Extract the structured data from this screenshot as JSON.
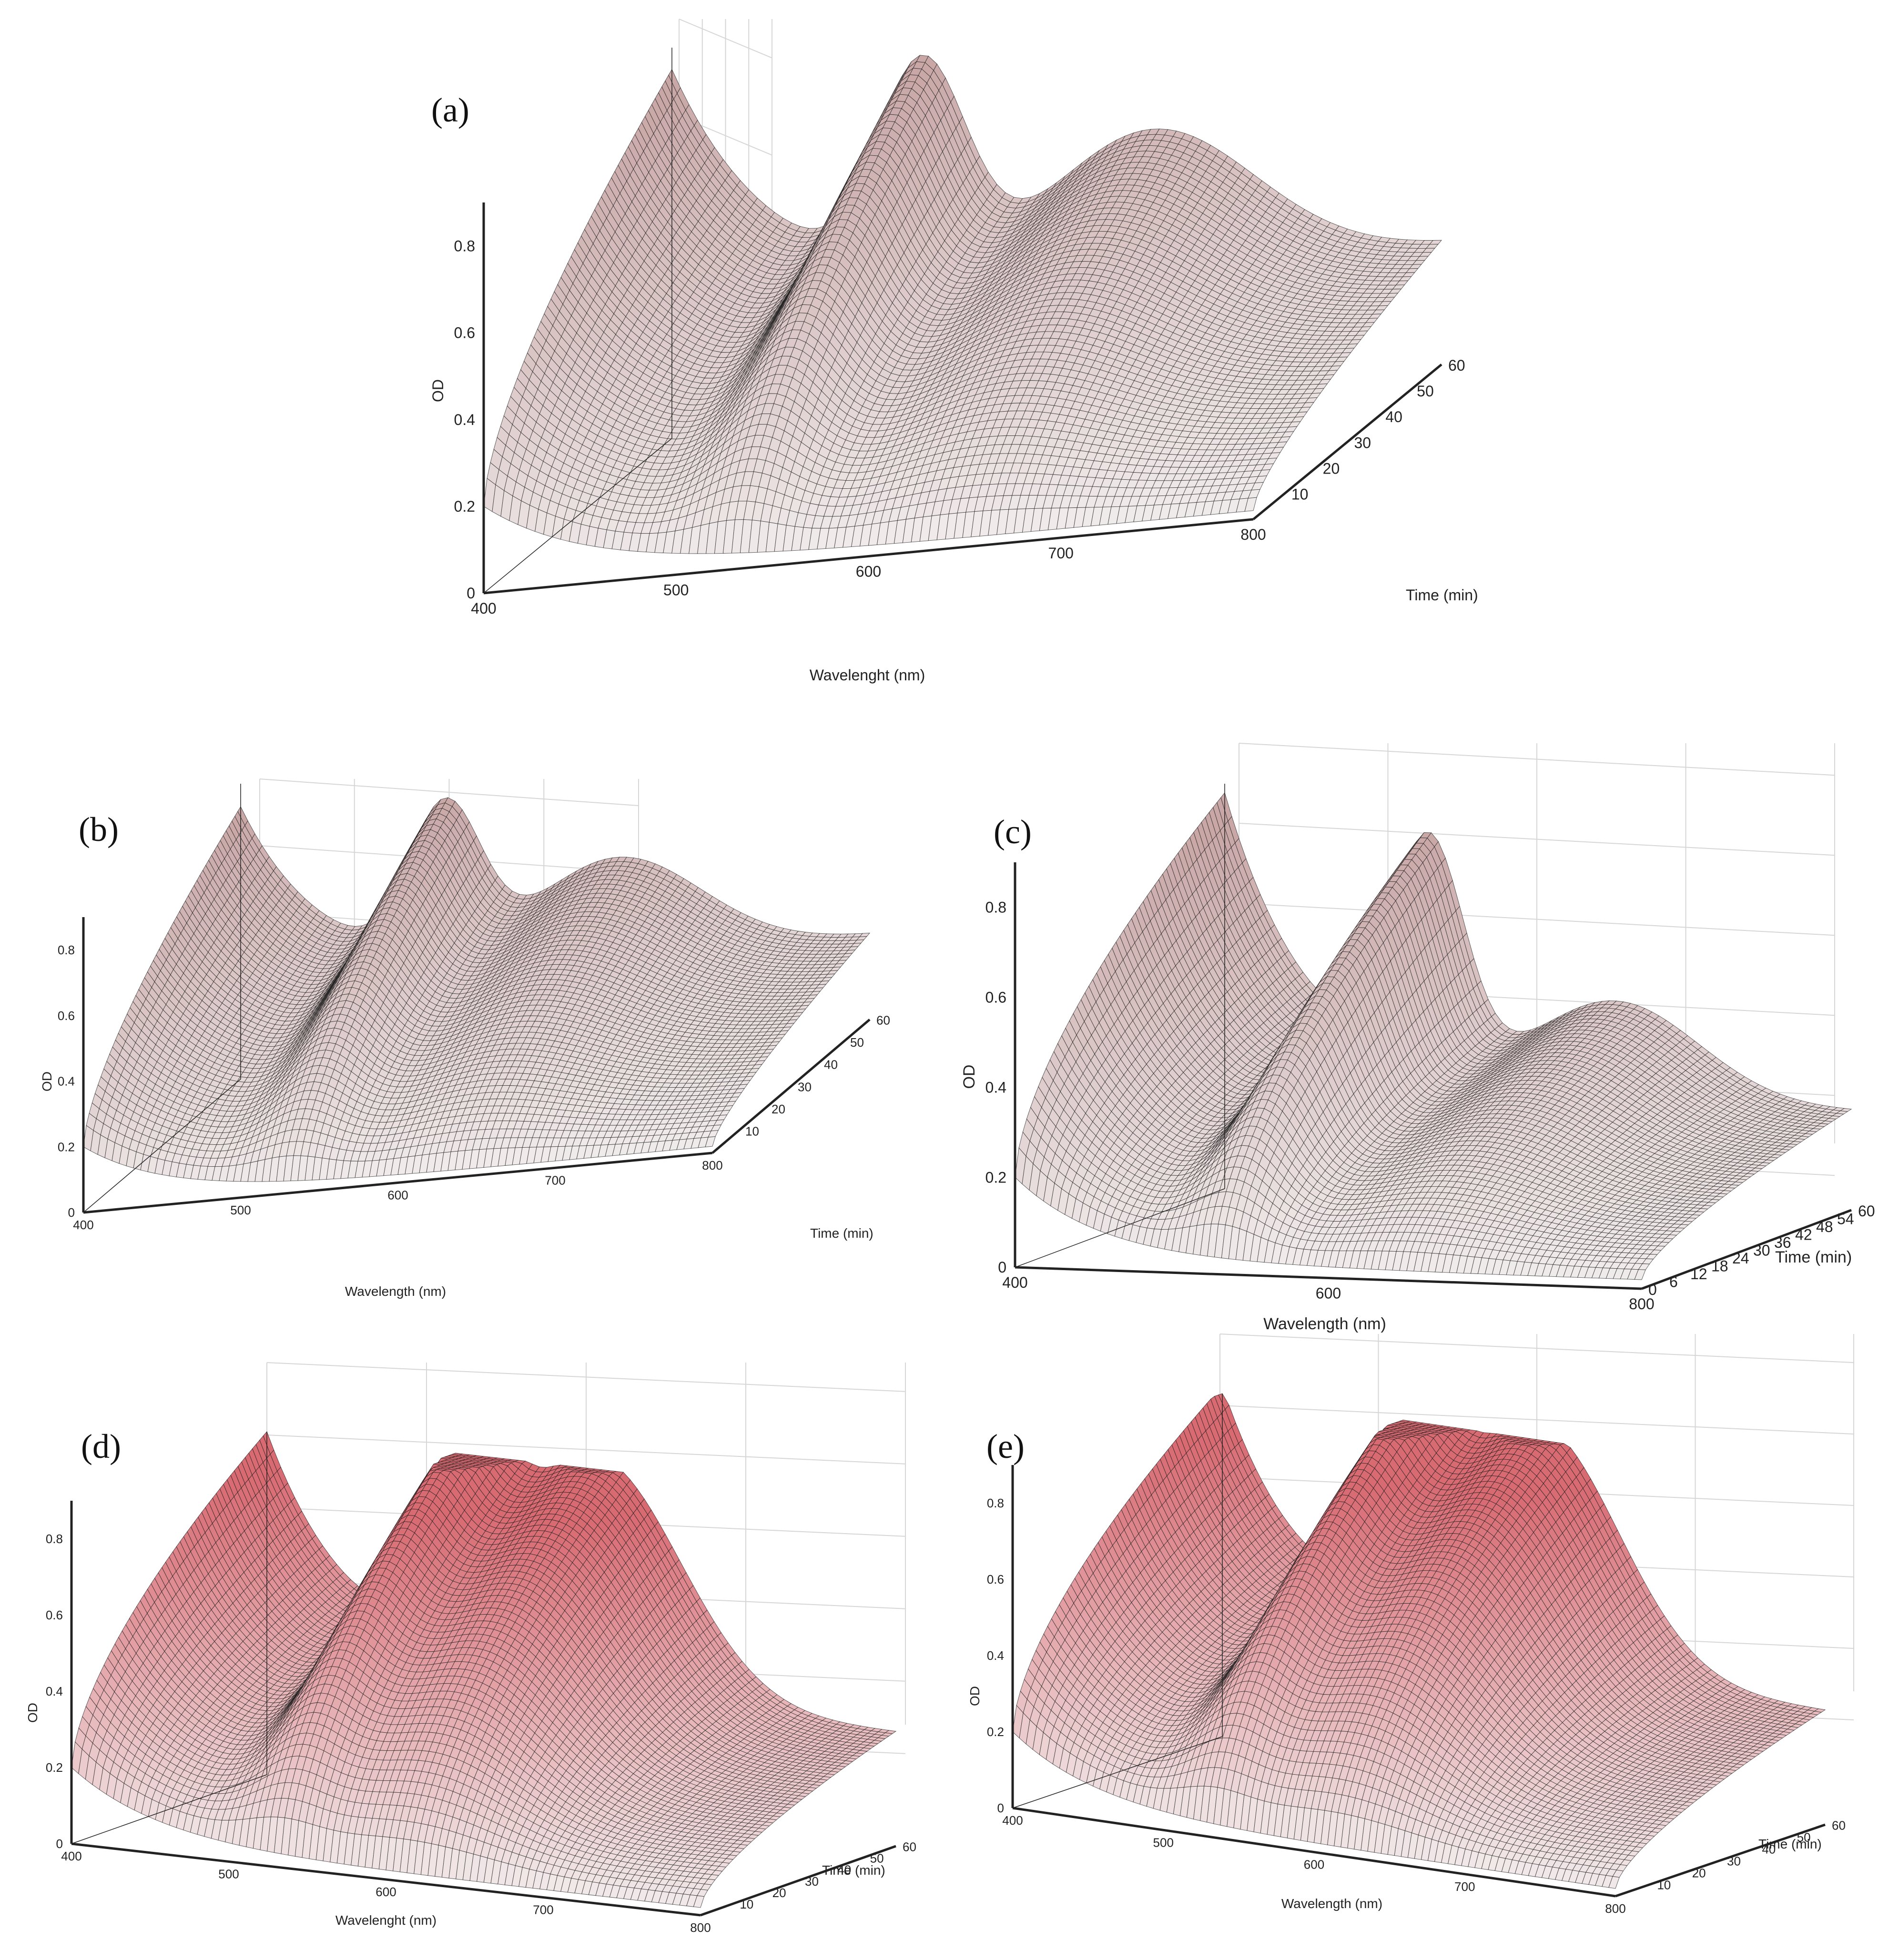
{
  "chart_data": [
    {
      "id": "a",
      "panel_label": "(a)",
      "type": "surface",
      "xlabel": "Wavelenght (nm)",
      "ylabel": "OD",
      "tlabel": "Time (min)",
      "xlim": [
        400,
        800
      ],
      "zlim": [
        0,
        0.9
      ],
      "tlim": [
        0,
        60
      ],
      "xticks": [
        400,
        500,
        600,
        700,
        800
      ],
      "zticks": [
        "0",
        "0.2",
        "0.4",
        "0.6",
        "0.8"
      ],
      "tticks": [
        10,
        20,
        30,
        40,
        50,
        60
      ],
      "spr_peak": {
        "wavelength_nm": 530,
        "od_at_60min": 0.72,
        "od_at_0min": 0.2
      },
      "secondary_peak": {
        "wavelength_nm": 650,
        "od_at_60min": 0.52
      },
      "od_at_400nm": {
        "t_0min": 0.2,
        "t_60min": 0.85
      },
      "od_at_800nm": {
        "t_0min": 0.02,
        "t_60min": 0.28
      }
    },
    {
      "id": "b",
      "panel_label": "(b)",
      "type": "surface",
      "xlabel": "Wavelength (nm)",
      "ylabel": "OD",
      "tlabel": "Time (min)",
      "xlim": [
        400,
        800
      ],
      "zlim": [
        0,
        0.9
      ],
      "tlim": [
        0,
        60
      ],
      "xticks": [
        400,
        500,
        600,
        700,
        800
      ],
      "zticks": [
        "0",
        "0.2",
        "0.4",
        "0.6",
        "0.8"
      ],
      "tticks": [
        10,
        20,
        30,
        40,
        50,
        60
      ],
      "spr_peak": {
        "wavelength_nm": 530,
        "od_at_60min": 0.7,
        "od_at_0min": 0.2
      },
      "secondary_peak": {
        "wavelength_nm": 640,
        "od_at_60min": 0.5
      },
      "od_at_400nm": {
        "t_0min": 0.2,
        "t_60min": 0.83
      },
      "od_at_800nm": {
        "t_0min": 0.02,
        "t_60min": 0.26
      }
    },
    {
      "id": "c",
      "panel_label": "(c)",
      "type": "surface",
      "xlabel": "Wavelength (nm)",
      "ylabel": "OD",
      "tlabel": "Time (min)",
      "xlim": [
        400,
        800
      ],
      "zlim": [
        0,
        0.9
      ],
      "tlim": [
        0,
        60
      ],
      "xticks": [
        400,
        600,
        800
      ],
      "zticks": [
        "0",
        "0.2",
        "0.4",
        "0.6",
        "0.8"
      ],
      "tticks": [
        0,
        6,
        12,
        18,
        24,
        30,
        36,
        42,
        48,
        54,
        60
      ],
      "spr_peak": {
        "wavelength_nm": 530,
        "od_at_60min": 0.76,
        "od_at_0min": 0.2
      },
      "secondary_peak": {
        "wavelength_nm": 650,
        "od_at_60min": 0.42
      },
      "od_at_400nm": {
        "t_0min": 0.2,
        "t_60min": 0.88
      },
      "od_at_800nm": {
        "t_0min": 0.02,
        "t_60min": 0.22
      }
    },
    {
      "id": "d",
      "panel_label": "(d)",
      "type": "surface",
      "xlabel": "Wavelenght (nm)",
      "ylabel": "OD",
      "tlabel": "Time (min)",
      "xlim": [
        400,
        800
      ],
      "zlim": [
        0,
        0.9
      ],
      "tlim": [
        0,
        60
      ],
      "xticks": [
        400,
        500,
        600,
        700,
        800
      ],
      "zticks": [
        "0",
        "0.2",
        "0.4",
        "0.6",
        "0.8"
      ],
      "tticks": [
        10,
        20,
        30,
        40,
        50,
        60
      ],
      "spr_peak": {
        "wavelength_nm": 530,
        "od_at_60min": 0.72,
        "od_at_0min": 0.2
      },
      "secondary_peak": {
        "wavelength_nm": 610,
        "od_at_60min": 0.82
      },
      "od_at_400nm": {
        "t_0min": 0.2,
        "t_60min": 0.9
      },
      "od_at_800nm": {
        "t_0min": 0.02,
        "t_60min": 0.3
      }
    },
    {
      "id": "e",
      "panel_label": "(e)",
      "type": "surface",
      "xlabel": "Wavelength (nm)",
      "ylabel": "OD",
      "tlabel": "Time (min)",
      "xlim": [
        400,
        800
      ],
      "zlim": [
        0,
        0.9
      ],
      "tlim": [
        0,
        60
      ],
      "xticks": [
        400,
        500,
        600,
        700,
        800
      ],
      "zticks": [
        "0",
        "0.2",
        "0.4",
        "0.6",
        "0.8"
      ],
      "tticks": [
        10,
        20,
        30,
        40,
        50,
        60
      ],
      "spr_peak": {
        "wavelength_nm": 530,
        "od_at_60min": 0.72,
        "od_at_0min": 0.2
      },
      "secondary_peak": {
        "wavelength_nm": 610,
        "od_at_60min": 0.83
      },
      "od_at_400nm": {
        "t_0min": 0.2,
        "t_60min": 0.92
      },
      "od_at_800nm": {
        "t_0min": 0.02,
        "t_60min": 0.3
      }
    }
  ],
  "colors": {
    "mesh_line": "#1a1a1a",
    "surface_low": "#f2eeee",
    "surface_high_panels_abc": "#c9a7a7",
    "surface_high_panels_de": "#d86a72",
    "grid": "#d6d6d6",
    "axis": "#222222"
  }
}
